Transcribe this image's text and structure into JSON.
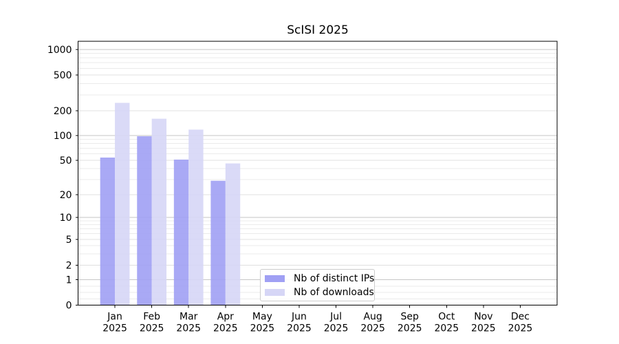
{
  "chart_data": {
    "type": "bar",
    "title": "ScISI 2025",
    "year_label": "2025",
    "categories": [
      "Jan",
      "Feb",
      "Mar",
      "Apr",
      "May",
      "Jun",
      "Jul",
      "Aug",
      "Sep",
      "Oct",
      "Nov",
      "Dec"
    ],
    "series": [
      {
        "name": "Nb of distinct IPs",
        "color": "#a0a0f4",
        "values": [
          54,
          98,
          51,
          29,
          0,
          0,
          0,
          0,
          0,
          0,
          0,
          0
        ]
      },
      {
        "name": "Nb of downloads",
        "color": "#d6d6f6",
        "values": [
          245,
          160,
          118,
          46,
          0,
          0,
          0,
          0,
          0,
          0,
          0,
          0
        ]
      }
    ],
    "xlabel": "",
    "ylabel": "",
    "yscale": "symlog",
    "yticks": [
      0,
      1,
      2,
      5,
      10,
      20,
      50,
      100,
      200,
      500,
      1000
    ],
    "ylim": [
      0,
      1000
    ],
    "grid": "both",
    "legend_position": "lower center inside"
  },
  "colors": {
    "major_grid": "#c6c6c6",
    "mid_grid": "#e0e0e0",
    "minor_grid": "#ebebeb",
    "axis": "#000000"
  }
}
